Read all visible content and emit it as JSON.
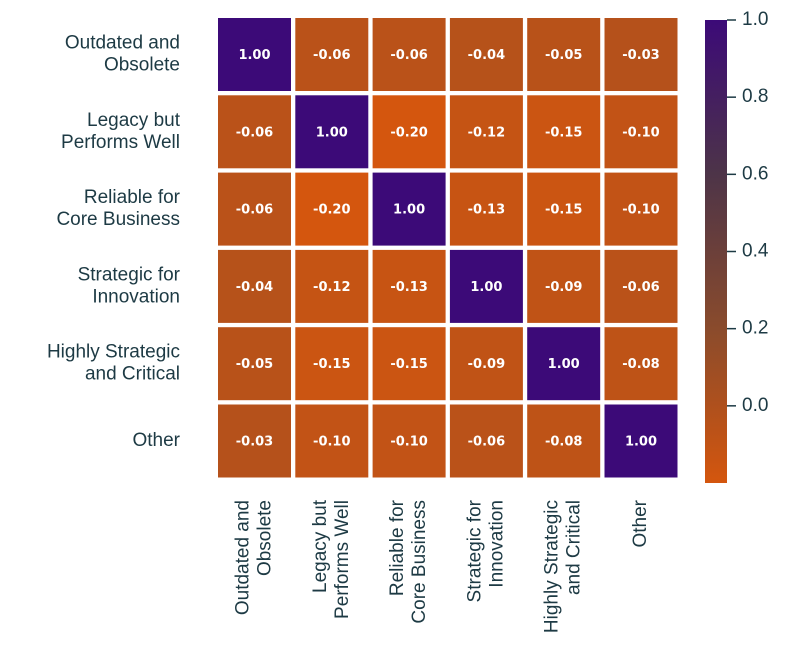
{
  "chart_data": {
    "type": "heatmap",
    "categories": [
      [
        "Outdated and",
        "Obsolete"
      ],
      [
        "Legacy but",
        "Performs Well"
      ],
      [
        "Reliable for",
        "Core Business"
      ],
      [
        "Strategic for",
        "Innovation"
      ],
      [
        "Highly Strategic",
        "and Critical"
      ],
      [
        "Other"
      ]
    ],
    "values": [
      [
        1,
        -0.06,
        -0.06,
        -0.04,
        -0.05,
        -0.03
      ],
      [
        -0.06,
        1,
        -0.2,
        -0.12,
        -0.15,
        -0.1
      ],
      [
        -0.06,
        -0.2,
        1,
        -0.13,
        -0.15,
        -0.1
      ],
      [
        -0.04,
        -0.12,
        -0.13,
        1,
        -0.09,
        -0.06
      ],
      [
        -0.05,
        -0.15,
        -0.15,
        -0.09,
        1,
        -0.08
      ],
      [
        -0.03,
        -0.1,
        -0.1,
        -0.06,
        -0.08,
        1
      ]
    ],
    "value_labels": [
      [
        "1.00",
        "-0.06",
        "-0.06",
        "-0.04",
        "-0.05",
        "-0.03"
      ],
      [
        "-0.06",
        "1.00",
        "-0.20",
        "-0.12",
        "-0.15",
        "-0.10"
      ],
      [
        "-0.06",
        "-0.20",
        "1.00",
        "-0.13",
        "-0.15",
        "-0.10"
      ],
      [
        "-0.04",
        "-0.12",
        "-0.13",
        "1.00",
        "-0.09",
        "-0.06"
      ],
      [
        "-0.05",
        "-0.15",
        "-0.15",
        "-0.09",
        "1.00",
        "-0.08"
      ],
      [
        "-0.03",
        "-0.10",
        "-0.10",
        "-0.06",
        "-0.08",
        "1.00"
      ]
    ],
    "colormap": [
      "#d4560e",
      "#8a4b2c",
      "#4d3448",
      "#3c0a78"
    ],
    "zlim": [
      -0.2,
      1
    ],
    "zticks": [
      {
        "value": 1,
        "label": "1.0"
      },
      0.8,
      0.6,
      0.4,
      0.2,
      {
        "value": 0,
        "label": "0.0"
      }
    ]
  }
}
